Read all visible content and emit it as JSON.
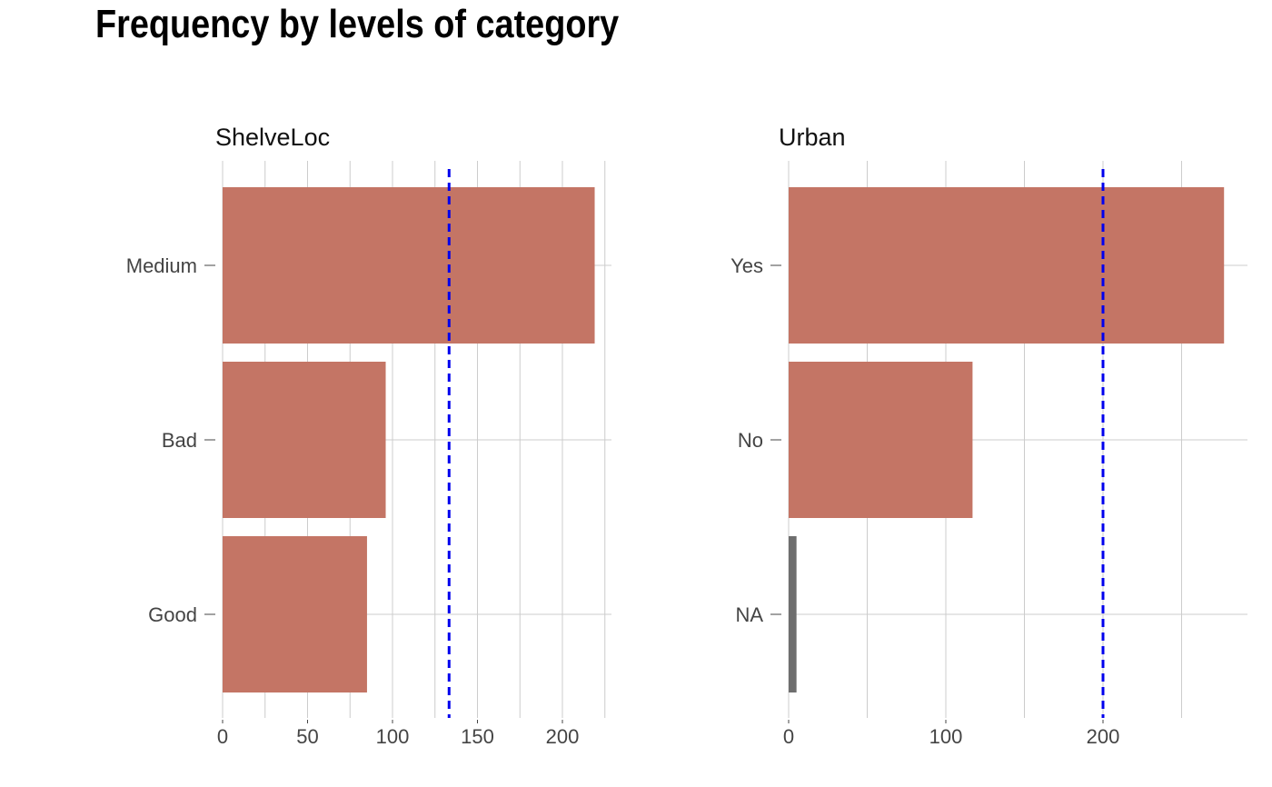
{
  "title": "Frequency by levels of category",
  "colors": {
    "bar": "#c47565",
    "na_bar": "#6e6e6e",
    "ref_line": "#0000ee",
    "grid": "#cccccc"
  },
  "chart_data": [
    {
      "type": "bar",
      "orientation": "horizontal",
      "title": "ShelveLoc",
      "categories": [
        "Medium",
        "Bad",
        "Good"
      ],
      "values": [
        219,
        96,
        85
      ],
      "xticks": [
        0,
        50,
        100,
        150,
        200
      ],
      "xlim": [
        0,
        230
      ],
      "reference_line": 133.3,
      "grid": true
    },
    {
      "type": "bar",
      "orientation": "horizontal",
      "title": "Urban",
      "categories": [
        "Yes",
        "No",
        "NA"
      ],
      "values": [
        277,
        117,
        5
      ],
      "xticks": [
        0,
        100,
        200
      ],
      "xlim": [
        0,
        290
      ],
      "reference_line": 200,
      "grid": true
    }
  ]
}
